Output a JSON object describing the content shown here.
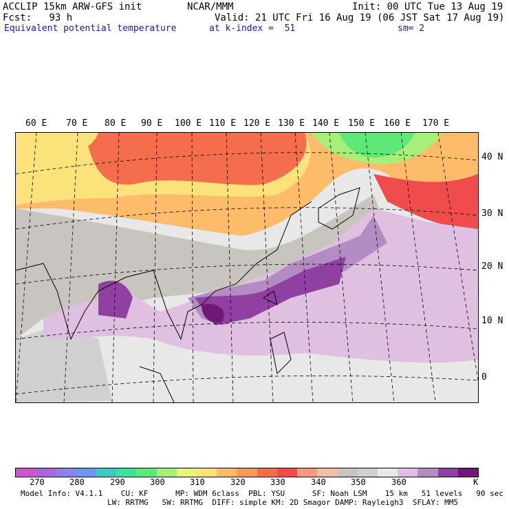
{
  "header": {
    "title": "ACCLIP 15km ARW-GFS init",
    "center": "NCAR/MMM",
    "init": "Init: 00 UTC Tue 13 Aug 19",
    "fcst": "Fcst:   93 h",
    "valid": "Valid: 21 UTC Fri 16 Aug 19 (06 JST Sat 17 Aug 19)",
    "field": "Equivalent potential temperature",
    "level": "at k-index =  51",
    "smooth": "sm= 2"
  },
  "lon_labels": [
    "60 E",
    "70 E",
    "80 E",
    "90 E",
    "100 E",
    "110 E",
    "120 E",
    "130 E",
    "140 E",
    "150 E",
    "160 E",
    "170 E"
  ],
  "lat_labels": [
    "40 N",
    "30 N",
    "20 N",
    "10 N",
    "0"
  ],
  "colorbar": {
    "colors": [
      "#c857c8",
      "#a866d6",
      "#8a84e8",
      "#6a98ee",
      "#3ec8c0",
      "#3ee0a0",
      "#5ee878",
      "#a6f07a",
      "#e6f47a",
      "#fce27a",
      "#fcbc6a",
      "#f89a5a",
      "#f46e4e",
      "#f04c4c",
      "#f49a82",
      "#f0c0a6",
      "#c8c4c0",
      "#d0d0d0",
      "#e8e8e8",
      "#e0c0e0",
      "#b48cc4",
      "#9040a0",
      "#701878"
    ],
    "ticks": [
      "270",
      "280",
      "290",
      "300",
      "310",
      "320",
      "330",
      "340",
      "350",
      "360",
      "K"
    ]
  },
  "footer": {
    "line1": "Model Info: V4.1.1    CU: KF      MP: WDM 6class  PBL: YSU      SF: Noah LSM    15 km   51 levels   90 sec",
    "line2": "LW: RRTMG   SW: RRTMG  DIFF: simple KM: 2D Smagor DAMP: Rayleigh3  SFLAY: MM5"
  }
}
